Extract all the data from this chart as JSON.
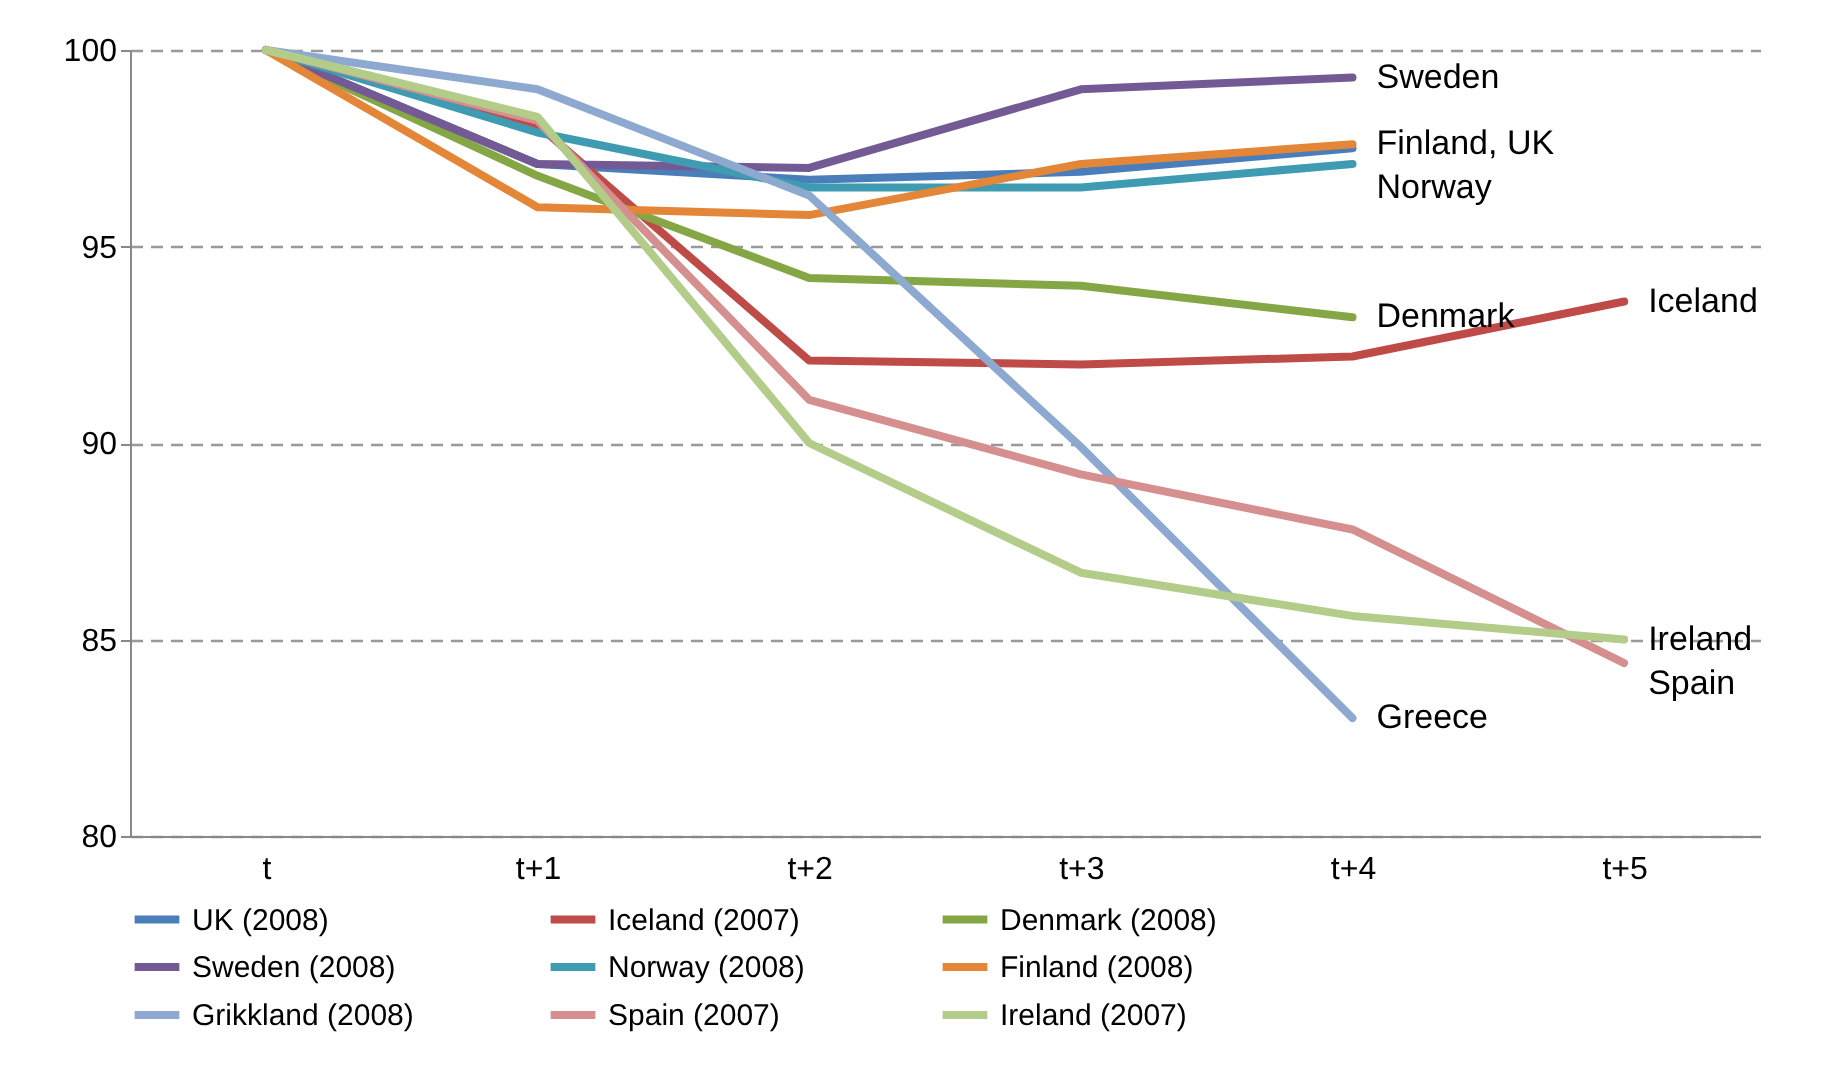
{
  "chart_data": {
    "type": "line",
    "categories": [
      "t",
      "t+1",
      "t+2",
      "t+3",
      "t+4",
      "t+5"
    ],
    "series": [
      {
        "name": "UK (2008)",
        "color": "#4a7ebb",
        "values": [
          100,
          97.1,
          96.7,
          96.9,
          97.5,
          null
        ]
      },
      {
        "name": "Iceland (2007)",
        "color": "#be4b48",
        "values": [
          100,
          98.1,
          92.1,
          92.0,
          92.2,
          93.6
        ]
      },
      {
        "name": "Denmark (2008)",
        "color": "#84a645",
        "values": [
          100,
          96.8,
          94.2,
          94.0,
          93.2,
          null
        ]
      },
      {
        "name": "Sweden (2008)",
        "color": "#735a95",
        "values": [
          100,
          97.1,
          97.0,
          99.0,
          99.3,
          null
        ]
      },
      {
        "name": "Norway (2008)",
        "color": "#3f9bb2",
        "values": [
          100,
          97.9,
          96.5,
          96.5,
          97.1,
          null
        ]
      },
      {
        "name": "Finland (2008)",
        "color": "#e48637",
        "values": [
          100,
          96.0,
          95.8,
          97.1,
          97.6,
          null
        ]
      },
      {
        "name": "Grikkland (2008)",
        "color": "#8ea9d0",
        "values": [
          100,
          99.0,
          96.3,
          89.9,
          83.0,
          null
        ]
      },
      {
        "name": "Spain (2007)",
        "color": "#d48f8e",
        "values": [
          100,
          98.2,
          91.1,
          89.2,
          87.8,
          84.4
        ]
      },
      {
        "name": "Ireland (2007)",
        "color": "#b3cc8a",
        "values": [
          100,
          98.3,
          90.0,
          86.7,
          85.6,
          85.0
        ]
      }
    ],
    "ylim": [
      80,
      100
    ],
    "yticks": [
      80,
      85,
      90,
      95,
      100
    ],
    "grid": "y",
    "legend": "bottom",
    "annotations": [
      {
        "text": "Sweden",
        "x": "t+4",
        "y": 99.3
      },
      {
        "text": "Finland, UK",
        "x": "t+4",
        "y": 97.6
      },
      {
        "text": "Norway",
        "x": "t+4",
        "y": 97.1
      },
      {
        "text": "Denmark",
        "x": "t+4",
        "y": 93.2
      },
      {
        "text": "Iceland",
        "x": "t+5",
        "y": 93.6
      },
      {
        "text": "Ireland",
        "x": "t+5",
        "y": 85.0
      },
      {
        "text": "Spain",
        "x": "t+5",
        "y": 84.4
      },
      {
        "text": "Greece",
        "x": "t+4",
        "y": 83.0
      }
    ]
  }
}
